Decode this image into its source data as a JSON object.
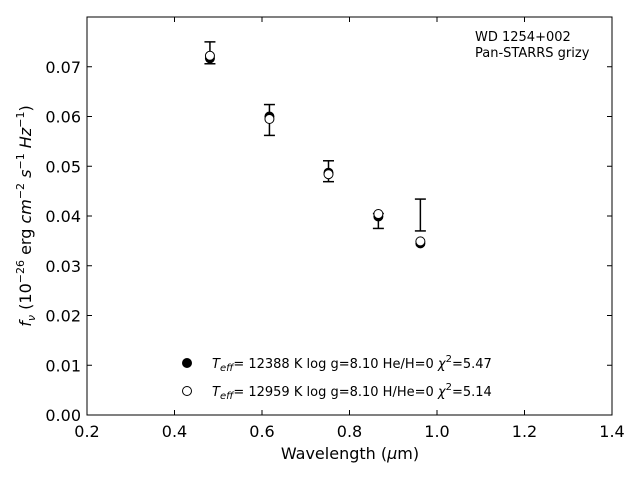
{
  "chart_data": {
    "type": "scatter",
    "xlabel": "Wavelength (μm)",
    "ylabel": "f_ν (10^−26 erg cm^−2 s^−1 Hz^−1)",
    "xlim": [
      0.2,
      1.4
    ],
    "ylim": [
      0.0,
      0.08
    ],
    "x_ticks": [
      0.2,
      0.4,
      0.6,
      0.8,
      1.0,
      1.2,
      1.4
    ],
    "x_tick_labels": [
      "0.2",
      "0.4",
      "0.6",
      "0.8",
      "1.0",
      "1.2",
      "1.4"
    ],
    "y_ticks": [
      0.0,
      0.01,
      0.02,
      0.03,
      0.04,
      0.05,
      0.06,
      0.07
    ],
    "y_tick_labels": [
      "0.00",
      "0.01",
      "0.02",
      "0.03",
      "0.04",
      "0.05",
      "0.06",
      "0.07"
    ],
    "grid": false,
    "annotation_lines": [
      "WD 1254+002",
      "Pan-STARRS grizy"
    ],
    "legend_position": "bottom-center",
    "observed": {
      "x": [
        0.481,
        0.617,
        0.752,
        0.866,
        0.962
      ],
      "y": [
        0.0728,
        0.0593,
        0.049,
        0.039,
        0.0402
      ],
      "yerr": [
        0.0022,
        0.0031,
        0.0021,
        0.0015,
        0.0032
      ]
    },
    "series": [
      {
        "marker": "filled-circle",
        "color": "#000000",
        "legend_label": "T_eff= 12388 K  log g=8.10  He/H=0  χ^2=5.47",
        "x": [
          0.481,
          0.617,
          0.752,
          0.866,
          0.962
        ],
        "y": [
          0.0717,
          0.06,
          0.0487,
          0.0399,
          0.0345
        ]
      },
      {
        "marker": "open-circle",
        "color": "#000000",
        "legend_label": "T_eff= 12959 K  log g=8.10  H/He=0  χ^2=5.14",
        "x": [
          0.481,
          0.617,
          0.752,
          0.866,
          0.962
        ],
        "y": [
          0.0722,
          0.0595,
          0.0484,
          0.0404,
          0.0349
        ]
      }
    ]
  }
}
